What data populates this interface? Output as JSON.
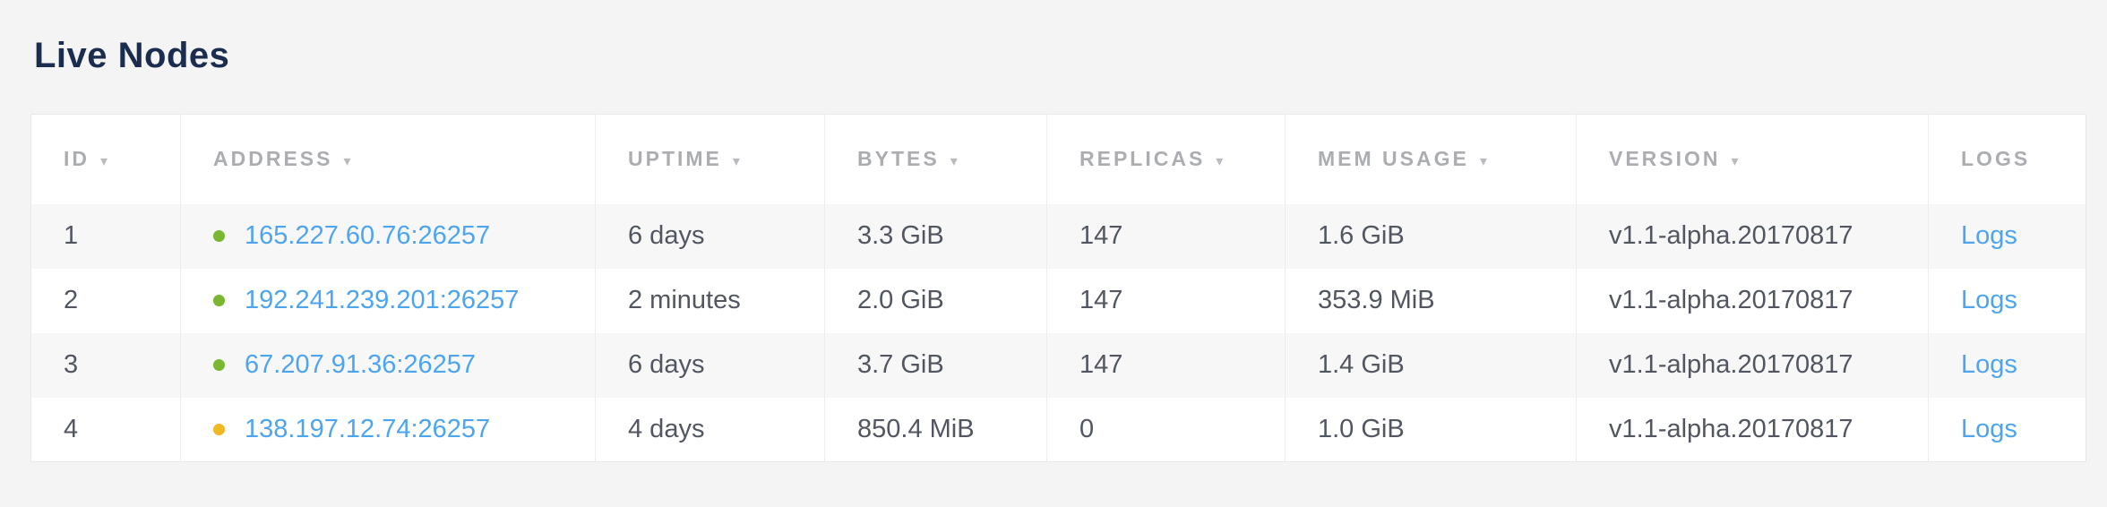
{
  "title": "Live Nodes",
  "colors": {
    "title": "#1b2d4f",
    "header_text": "#abadb0",
    "cell_text": "#525660",
    "link": "#4da5f0",
    "status_healthy": "#78b72f",
    "status_warning": "#f2b824"
  },
  "table": {
    "sort_icon": "▾",
    "columns": [
      {
        "label": "ID",
        "sortable": true
      },
      {
        "label": "ADDRESS",
        "sortable": true
      },
      {
        "label": "UPTIME",
        "sortable": true
      },
      {
        "label": "BYTES",
        "sortable": true
      },
      {
        "label": "REPLICAS",
        "sortable": true
      },
      {
        "label": "MEM USAGE",
        "sortable": true
      },
      {
        "label": "VERSION",
        "sortable": true
      },
      {
        "label": "LOGS",
        "sortable": false
      }
    ],
    "rows": [
      {
        "id": "1",
        "status": "healthy",
        "address": "165.227.60.76:26257",
        "uptime": "6 days",
        "bytes": "3.3 GiB",
        "replicas": "147",
        "mem_usage": "1.6 GiB",
        "version": "v1.1-alpha.20170817",
        "logs_label": "Logs"
      },
      {
        "id": "2",
        "status": "healthy",
        "address": "192.241.239.201:26257",
        "uptime": "2 minutes",
        "bytes": "2.0 GiB",
        "replicas": "147",
        "mem_usage": "353.9 MiB",
        "version": "v1.1-alpha.20170817",
        "logs_label": "Logs"
      },
      {
        "id": "3",
        "status": "healthy",
        "address": "67.207.91.36:26257",
        "uptime": "6 days",
        "bytes": "3.7 GiB",
        "replicas": "147",
        "mem_usage": "1.4 GiB",
        "version": "v1.1-alpha.20170817",
        "logs_label": "Logs"
      },
      {
        "id": "4",
        "status": "warning",
        "address": "138.197.12.74:26257",
        "uptime": "4 days",
        "bytes": "850.4 MiB",
        "replicas": "0",
        "mem_usage": "1.0 GiB",
        "version": "v1.1-alpha.20170817",
        "logs_label": "Logs"
      }
    ]
  }
}
